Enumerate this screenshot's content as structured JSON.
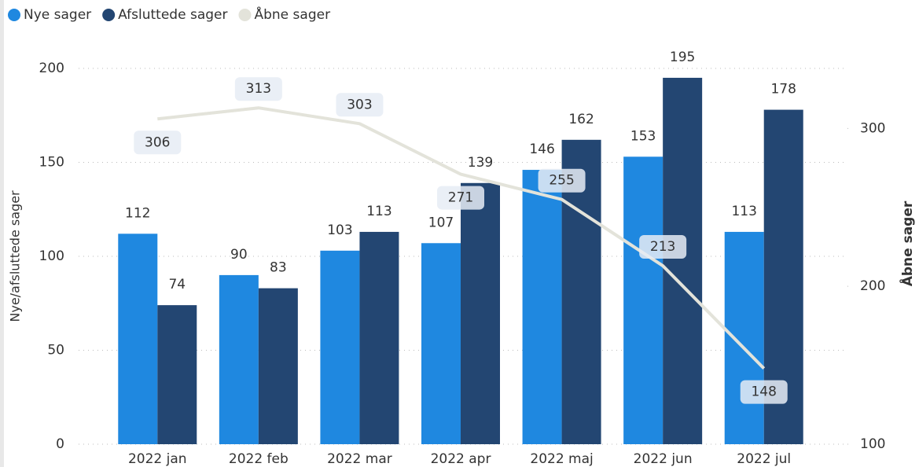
{
  "chart_data": {
    "type": "bar-line",
    "categories": [
      "2022 jan",
      "2022 feb",
      "2022 mar",
      "2022 apr",
      "2022 maj",
      "2022 jun",
      "2022 jul"
    ],
    "series": [
      {
        "name": "Nye sager",
        "color": "#1f88e0",
        "values": [
          112,
          90,
          103,
          107,
          146,
          153,
          113
        ]
      },
      {
        "name": "Afsluttede sager",
        "color": "#234672",
        "values": [
          74,
          83,
          113,
          139,
          162,
          195,
          178
        ]
      },
      {
        "name": "Åbne sager",
        "color": "#e3e3da",
        "values": [
          306,
          313,
          303,
          271,
          255,
          213,
          148
        ],
        "axis": "y2"
      }
    ],
    "ylabel": "Nye/afsluttede sager",
    "y2label": "Åbne sager",
    "ylim": [
      0,
      200
    ],
    "yticks": [
      0,
      50,
      100,
      150,
      200
    ],
    "y2lim": [
      100,
      338
    ],
    "y2ticks": [
      100,
      200,
      300
    ],
    "grid": true,
    "legend": "top-left"
  }
}
